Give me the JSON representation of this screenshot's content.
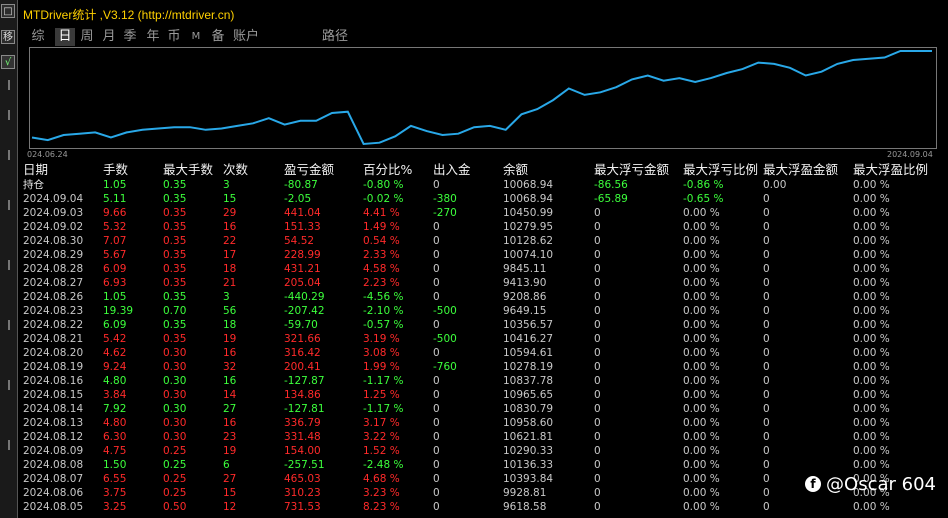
{
  "window": {
    "title": "MTDriver统计 ,V3.12 (http://mtdriver.cn)"
  },
  "rail": {
    "close_glyph": "□",
    "shift_glyph": "移",
    "check_glyph": "√"
  },
  "tabs": [
    "综",
    "日",
    "周",
    "月",
    "季",
    "年",
    "币",
    "M",
    "备",
    "账户",
    "路径"
  ],
  "active_tab": "日",
  "chart": {
    "start_date": "024.06.24",
    "end_date": "2024.09.04",
    "line_color": "#29a8e8"
  },
  "chart_data": {
    "type": "line",
    "xlabel": "",
    "ylabel": "",
    "x_start": "024.06.24",
    "x_end": "2024.09.04",
    "series": [
      {
        "values": [
          5,
          3,
          7,
          8,
          9,
          5,
          9,
          11,
          12,
          13,
          13,
          11,
          12,
          14,
          16,
          20,
          15,
          18,
          18,
          24,
          25,
          0,
          1,
          6,
          14,
          10,
          7,
          8,
          13,
          14,
          11,
          23,
          27,
          34,
          43,
          38,
          40,
          44,
          50,
          53,
          49,
          51,
          48,
          51,
          55,
          58,
          63,
          62,
          59,
          53,
          56,
          62,
          65,
          66,
          67,
          72,
          72,
          72
        ]
      }
    ]
  },
  "table": {
    "headers": [
      "日期",
      "手数",
      "最大手数",
      "次数",
      "盈亏金额",
      "百分比%",
      "出入金",
      "余额",
      "最大浮亏金额",
      "最大浮亏比例",
      "最大浮盈金额",
      "最大浮盈比例"
    ],
    "rows": [
      {
        "tone": "pos",
        "date": "持仓",
        "lots": "1.05",
        "maxlots": "0.35",
        "count": "3",
        "pl": "-80.87",
        "pct": "-0.80 %",
        "flow": "0",
        "balance": "10068.94",
        "maxloss": "-86.56",
        "maxlosspct": "-0.86 %",
        "maxgain": "0.00",
        "maxgainpct": "0.00 %"
      },
      {
        "tone": "pos",
        "date": "2024.09.04",
        "lots": "5.11",
        "maxlots": "0.35",
        "count": "15",
        "pl": "-2.05",
        "pct": "-0.02 %",
        "flow": "-380",
        "balance": "10068.94",
        "maxloss": "-65.89",
        "maxlosspct": "-0.65 %",
        "maxgain": "0",
        "maxgainpct": "0.00 %"
      },
      {
        "tone": "neg",
        "date": "2024.09.03",
        "lots": "9.66",
        "maxlots": "0.35",
        "count": "29",
        "pl": "441.04",
        "pct": "4.41 %",
        "flow": "-270",
        "balance": "10450.99",
        "maxloss": "0",
        "maxlosspct": "0.00 %",
        "maxgain": "0",
        "maxgainpct": "0.00 %"
      },
      {
        "tone": "neg",
        "date": "2024.09.02",
        "lots": "5.32",
        "maxlots": "0.35",
        "count": "16",
        "pl": "151.33",
        "pct": "1.49 %",
        "flow": "0",
        "balance": "10279.95",
        "maxloss": "0",
        "maxlosspct": "0.00 %",
        "maxgain": "0",
        "maxgainpct": "0.00 %"
      },
      {
        "tone": "neg",
        "date": "2024.08.30",
        "lots": "7.07",
        "maxlots": "0.35",
        "count": "22",
        "pl": "54.52",
        "pct": "0.54 %",
        "flow": "0",
        "balance": "10128.62",
        "maxloss": "0",
        "maxlosspct": "0.00 %",
        "maxgain": "0",
        "maxgainpct": "0.00 %"
      },
      {
        "tone": "neg",
        "date": "2024.08.29",
        "lots": "5.67",
        "maxlots": "0.35",
        "count": "17",
        "pl": "228.99",
        "pct": "2.33 %",
        "flow": "0",
        "balance": "10074.10",
        "maxloss": "0",
        "maxlosspct": "0.00 %",
        "maxgain": "0",
        "maxgainpct": "0.00 %"
      },
      {
        "tone": "neg",
        "date": "2024.08.28",
        "lots": "6.09",
        "maxlots": "0.35",
        "count": "18",
        "pl": "431.21",
        "pct": "4.58 %",
        "flow": "0",
        "balance": "9845.11",
        "maxloss": "0",
        "maxlosspct": "0.00 %",
        "maxgain": "0",
        "maxgainpct": "0.00 %"
      },
      {
        "tone": "neg",
        "date": "2024.08.27",
        "lots": "6.93",
        "maxlots": "0.35",
        "count": "21",
        "pl": "205.04",
        "pct": "2.23 %",
        "flow": "0",
        "balance": "9413.90",
        "maxloss": "0",
        "maxlosspct": "0.00 %",
        "maxgain": "0",
        "maxgainpct": "0.00 %"
      },
      {
        "tone": "pos",
        "date": "2024.08.26",
        "lots": "1.05",
        "maxlots": "0.35",
        "count": "3",
        "pl": "-440.29",
        "pct": "-4.56 %",
        "flow": "0",
        "balance": "9208.86",
        "maxloss": "0",
        "maxlosspct": "0.00 %",
        "maxgain": "0",
        "maxgainpct": "0.00 %"
      },
      {
        "tone": "pos",
        "date": "2024.08.23",
        "lots": "19.39",
        "maxlots": "0.70",
        "count": "56",
        "pl": "-207.42",
        "pct": "-2.10 %",
        "flow": "-500",
        "balance": "9649.15",
        "maxloss": "0",
        "maxlosspct": "0.00 %",
        "maxgain": "0",
        "maxgainpct": "0.00 %"
      },
      {
        "tone": "pos",
        "date": "2024.08.22",
        "lots": "6.09",
        "maxlots": "0.35",
        "count": "18",
        "pl": "-59.70",
        "pct": "-0.57 %",
        "flow": "0",
        "balance": "10356.57",
        "maxloss": "0",
        "maxlosspct": "0.00 %",
        "maxgain": "0",
        "maxgainpct": "0.00 %"
      },
      {
        "tone": "neg",
        "date": "2024.08.21",
        "lots": "5.42",
        "maxlots": "0.35",
        "count": "19",
        "pl": "321.66",
        "pct": "3.19 %",
        "flow": "-500",
        "balance": "10416.27",
        "maxloss": "0",
        "maxlosspct": "0.00 %",
        "maxgain": "0",
        "maxgainpct": "0.00 %"
      },
      {
        "tone": "neg",
        "date": "2024.08.20",
        "lots": "4.62",
        "maxlots": "0.30",
        "count": "16",
        "pl": "316.42",
        "pct": "3.08 %",
        "flow": "0",
        "balance": "10594.61",
        "maxloss": "0",
        "maxlosspct": "0.00 %",
        "maxgain": "0",
        "maxgainpct": "0.00 %"
      },
      {
        "tone": "neg",
        "date": "2024.08.19",
        "lots": "9.24",
        "maxlots": "0.30",
        "count": "32",
        "pl": "200.41",
        "pct": "1.99 %",
        "flow": "-760",
        "balance": "10278.19",
        "maxloss": "0",
        "maxlosspct": "0.00 %",
        "maxgain": "0",
        "maxgainpct": "0.00 %"
      },
      {
        "tone": "pos",
        "date": "2024.08.16",
        "lots": "4.80",
        "maxlots": "0.30",
        "count": "16",
        "pl": "-127.87",
        "pct": "-1.17 %",
        "flow": "0",
        "balance": "10837.78",
        "maxloss": "0",
        "maxlosspct": "0.00 %",
        "maxgain": "0",
        "maxgainpct": "0.00 %"
      },
      {
        "tone": "neg",
        "date": "2024.08.15",
        "lots": "3.84",
        "maxlots": "0.30",
        "count": "14",
        "pl": "134.86",
        "pct": "1.25 %",
        "flow": "0",
        "balance": "10965.65",
        "maxloss": "0",
        "maxlosspct": "0.00 %",
        "maxgain": "0",
        "maxgainpct": "0.00 %"
      },
      {
        "tone": "pos",
        "date": "2024.08.14",
        "lots": "7.92",
        "maxlots": "0.30",
        "count": "27",
        "pl": "-127.81",
        "pct": "-1.17 %",
        "flow": "0",
        "balance": "10830.79",
        "maxloss": "0",
        "maxlosspct": "0.00 %",
        "maxgain": "0",
        "maxgainpct": "0.00 %"
      },
      {
        "tone": "neg",
        "date": "2024.08.13",
        "lots": "4.80",
        "maxlots": "0.30",
        "count": "16",
        "pl": "336.79",
        "pct": "3.17 %",
        "flow": "0",
        "balance": "10958.60",
        "maxloss": "0",
        "maxlosspct": "0.00 %",
        "maxgain": "0",
        "maxgainpct": "0.00 %"
      },
      {
        "tone": "neg",
        "date": "2024.08.12",
        "lots": "6.30",
        "maxlots": "0.30",
        "count": "23",
        "pl": "331.48",
        "pct": "3.22 %",
        "flow": "0",
        "balance": "10621.81",
        "maxloss": "0",
        "maxlosspct": "0.00 %",
        "maxgain": "0",
        "maxgainpct": "0.00 %"
      },
      {
        "tone": "neg",
        "date": "2024.08.09",
        "lots": "4.75",
        "maxlots": "0.25",
        "count": "19",
        "pl": "154.00",
        "pct": "1.52 %",
        "flow": "0",
        "balance": "10290.33",
        "maxloss": "0",
        "maxlosspct": "0.00 %",
        "maxgain": "0",
        "maxgainpct": "0.00 %"
      },
      {
        "tone": "pos",
        "date": "2024.08.08",
        "lots": "1.50",
        "maxlots": "0.25",
        "count": "6",
        "pl": "-257.51",
        "pct": "-2.48 %",
        "flow": "0",
        "balance": "10136.33",
        "maxloss": "0",
        "maxlosspct": "0.00 %",
        "maxgain": "0",
        "maxgainpct": "0.00 %"
      },
      {
        "tone": "neg",
        "date": "2024.08.07",
        "lots": "6.55",
        "maxlots": "0.25",
        "count": "27",
        "pl": "465.03",
        "pct": "4.68 %",
        "flow": "0",
        "balance": "10393.84",
        "maxloss": "0",
        "maxlosspct": "0.00 %",
        "maxgain": "0",
        "maxgainpct": "0.00 %"
      },
      {
        "tone": "neg",
        "date": "2024.08.06",
        "lots": "3.75",
        "maxlots": "0.25",
        "count": "15",
        "pl": "310.23",
        "pct": "3.23 %",
        "flow": "0",
        "balance": "9928.81",
        "maxloss": "0",
        "maxlosspct": "0.00 %",
        "maxgain": "0",
        "maxgainpct": "0.00 %"
      },
      {
        "tone": "neg",
        "date": "2024.08.05",
        "lots": "3.25",
        "maxlots": "0.50",
        "count": "12",
        "pl": "731.53",
        "pct": "8.23 %",
        "flow": "0",
        "balance": "9618.58",
        "maxloss": "0",
        "maxlosspct": "0.00 %",
        "maxgain": "0",
        "maxgainpct": "0.00 %"
      }
    ]
  },
  "watermark": {
    "icon": "facebook-icon",
    "glyph": "f",
    "text": "@Oscar 604"
  }
}
